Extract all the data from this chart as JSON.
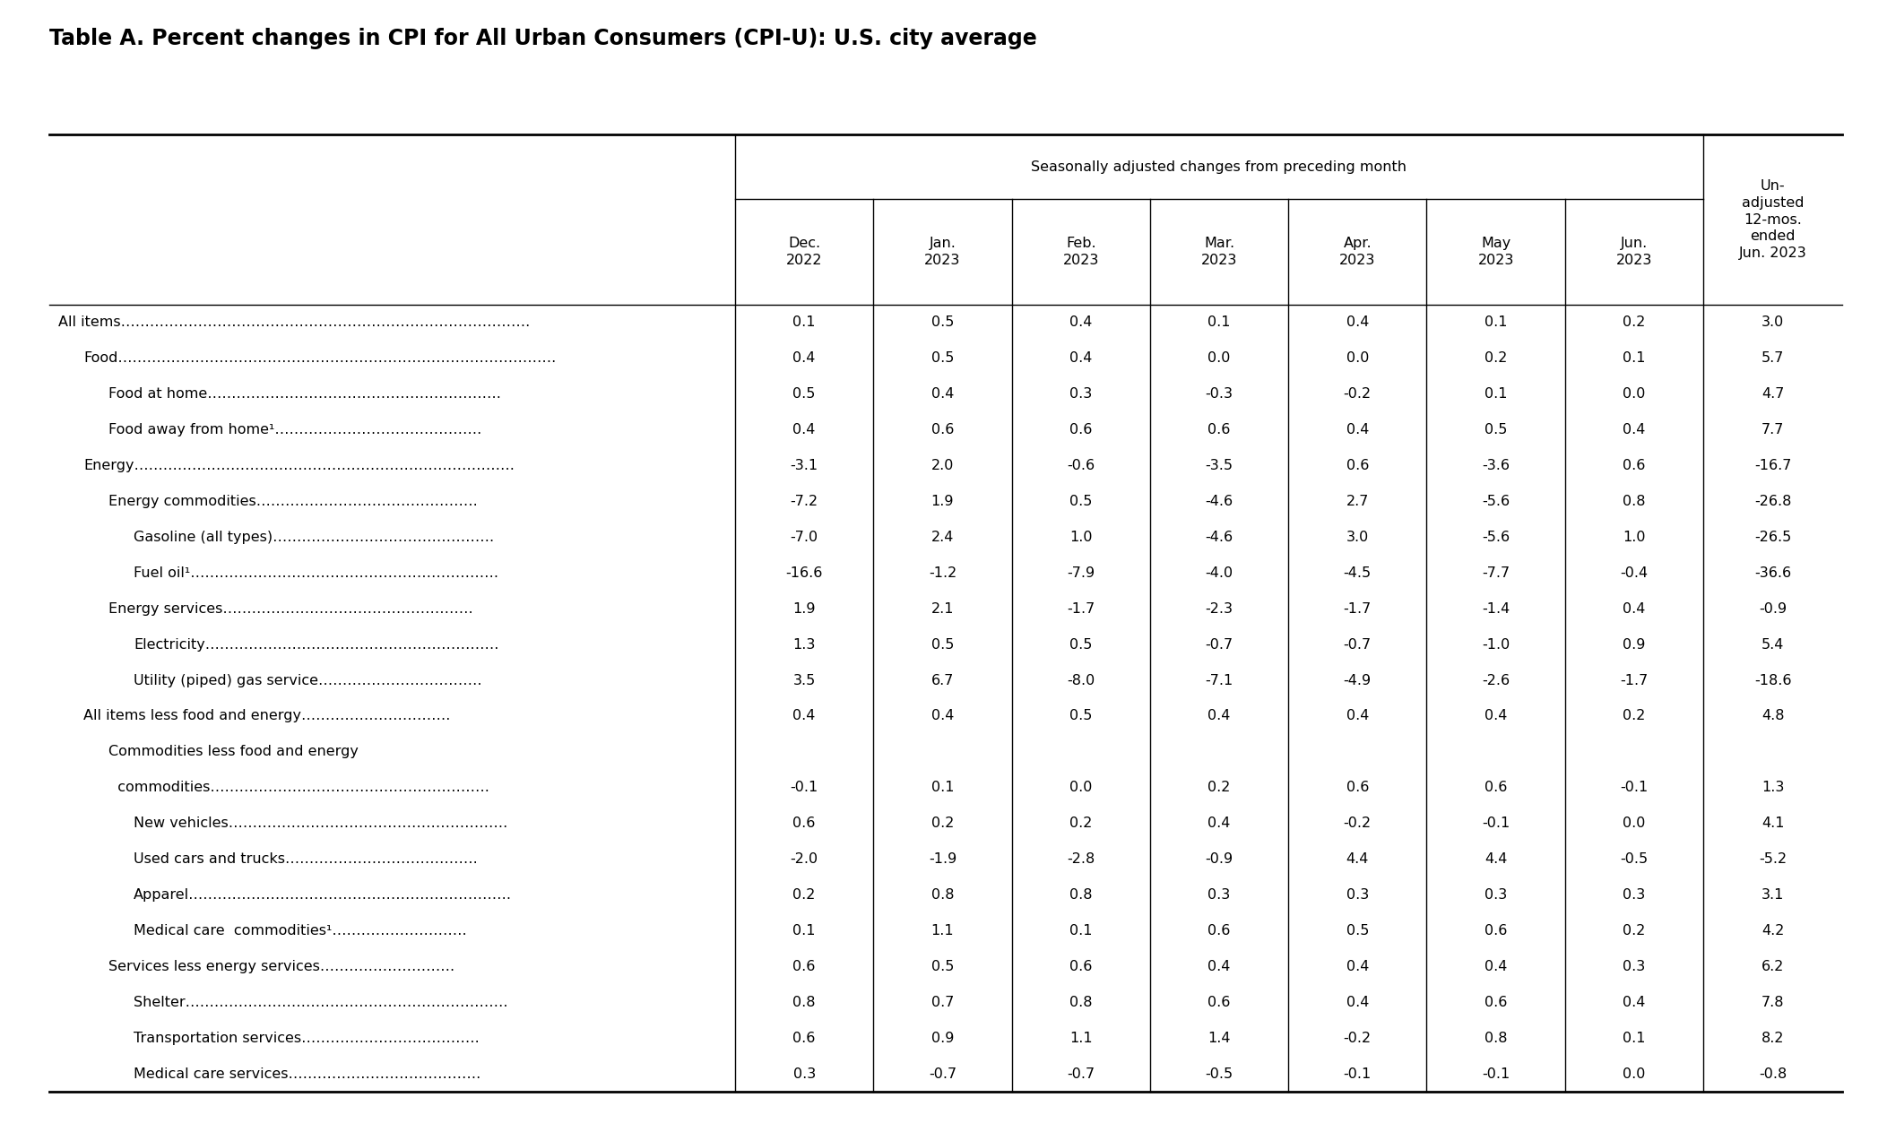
{
  "title": "Table A. Percent changes in CPI for All Urban Consumers (CPI-U): U.S. city average",
  "header_group": "Seasonally adjusted changes from preceding month",
  "last_col_header": "Un-\nadjusted\n12-mos.\nended\nJun. 2023",
  "col_headers": [
    "Dec.\n2022",
    "Jan.\n2023",
    "Feb.\n2023",
    "Mar.\n2023",
    "Apr.\n2023",
    "May\n2023",
    "Jun.\n2023"
  ],
  "rows": [
    {
      "label": "All items………………………………………………………………………….",
      "indent": 0,
      "values": [
        0.1,
        0.5,
        0.4,
        0.1,
        0.4,
        0.1,
        0.2,
        3.0
      ],
      "bold": false
    },
    {
      "label": "Food……………………………………………………………………………….",
      "indent": 1,
      "values": [
        0.4,
        0.5,
        0.4,
        0.0,
        0.0,
        0.2,
        0.1,
        5.7
      ],
      "bold": false
    },
    {
      "label": "Food at home…………………………………………………….",
      "indent": 2,
      "values": [
        0.5,
        0.4,
        0.3,
        -0.3,
        -0.2,
        0.1,
        0.0,
        4.7
      ],
      "bold": false
    },
    {
      "label": "Food away from home¹…………………………………….",
      "indent": 2,
      "values": [
        0.4,
        0.6,
        0.6,
        0.6,
        0.4,
        0.5,
        0.4,
        7.7
      ],
      "bold": false
    },
    {
      "label": "Energy…………………………………………………………………….",
      "indent": 1,
      "values": [
        -3.1,
        2.0,
        -0.6,
        -3.5,
        0.6,
        -3.6,
        0.6,
        -16.7
      ],
      "bold": false
    },
    {
      "label": "Energy commodities……………………………………….",
      "indent": 2,
      "values": [
        -7.2,
        1.9,
        0.5,
        -4.6,
        2.7,
        -5.6,
        0.8,
        -26.8
      ],
      "bold": false
    },
    {
      "label": "Gasoline (all types)……………………………………….",
      "indent": 3,
      "values": [
        -7.0,
        2.4,
        1.0,
        -4.6,
        3.0,
        -5.6,
        1.0,
        -26.5
      ],
      "bold": false
    },
    {
      "label": "Fuel oil¹……………………………………………………….",
      "indent": 3,
      "values": [
        -16.6,
        -1.2,
        -7.9,
        -4.0,
        -4.5,
        -7.7,
        -0.4,
        -36.6
      ],
      "bold": false
    },
    {
      "label": "Energy services…………………………………………….",
      "indent": 2,
      "values": [
        1.9,
        2.1,
        -1.7,
        -2.3,
        -1.7,
        -1.4,
        0.4,
        -0.9
      ],
      "bold": false
    },
    {
      "label": "Electricity…………………………………………………….",
      "indent": 3,
      "values": [
        1.3,
        0.5,
        0.5,
        -0.7,
        -0.7,
        -1.0,
        0.9,
        5.4
      ],
      "bold": false
    },
    {
      "label": "Utility (piped) gas service…………………………….",
      "indent": 3,
      "values": [
        3.5,
        6.7,
        -8.0,
        -7.1,
        -4.9,
        -2.6,
        -1.7,
        -18.6
      ],
      "bold": false
    },
    {
      "label": "All items less food and energy………………………….",
      "indent": 1,
      "values": [
        0.4,
        0.4,
        0.5,
        0.4,
        0.4,
        0.4,
        0.2,
        4.8
      ],
      "bold": false
    },
    {
      "label": "Commodities less food and energy",
      "indent": 2,
      "values": null,
      "bold": false,
      "continuation": true
    },
    {
      "label": "  commodities………………………………………………….",
      "indent": 2,
      "values": [
        -0.1,
        0.1,
        0.0,
        0.2,
        0.6,
        0.6,
        -0.1,
        1.3
      ],
      "bold": false
    },
    {
      "label": "New vehicles………………………………………………….",
      "indent": 3,
      "values": [
        0.6,
        0.2,
        0.2,
        0.4,
        -0.2,
        -0.1,
        0.0,
        4.1
      ],
      "bold": false
    },
    {
      "label": "Used cars and trucks………………………………….",
      "indent": 3,
      "values": [
        -2.0,
        -1.9,
        -2.8,
        -0.9,
        4.4,
        4.4,
        -0.5,
        -5.2
      ],
      "bold": false
    },
    {
      "label": "Apparel………………………………………………………….",
      "indent": 3,
      "values": [
        0.2,
        0.8,
        0.8,
        0.3,
        0.3,
        0.3,
        0.3,
        3.1
      ],
      "bold": false
    },
    {
      "label": "Medical care  commodities¹……………………….",
      "indent": 3,
      "values": [
        0.1,
        1.1,
        0.1,
        0.6,
        0.5,
        0.6,
        0.2,
        4.2
      ],
      "bold": false
    },
    {
      "label": "Services less energy services……………………….",
      "indent": 2,
      "values": [
        0.6,
        0.5,
        0.6,
        0.4,
        0.4,
        0.4,
        0.3,
        6.2
      ],
      "bold": false
    },
    {
      "label": "Shelter………………………………………………………….",
      "indent": 3,
      "values": [
        0.8,
        0.7,
        0.8,
        0.6,
        0.4,
        0.6,
        0.4,
        7.8
      ],
      "bold": false
    },
    {
      "label": "Transportation services……………………………….",
      "indent": 3,
      "values": [
        0.6,
        0.9,
        1.1,
        1.4,
        -0.2,
        0.8,
        0.1,
        8.2
      ],
      "bold": false
    },
    {
      "label": "Medical care services………………………………….",
      "indent": 3,
      "values": [
        0.3,
        -0.7,
        -0.7,
        -0.5,
        -0.1,
        -0.1,
        0.0,
        -0.8
      ],
      "bold": false
    }
  ],
  "bg_color": "#ffffff",
  "text_color": "#000000",
  "border_color": "#000000",
  "title_fontsize": 17,
  "cell_fontsize": 11.5,
  "header_fontsize": 11.5
}
